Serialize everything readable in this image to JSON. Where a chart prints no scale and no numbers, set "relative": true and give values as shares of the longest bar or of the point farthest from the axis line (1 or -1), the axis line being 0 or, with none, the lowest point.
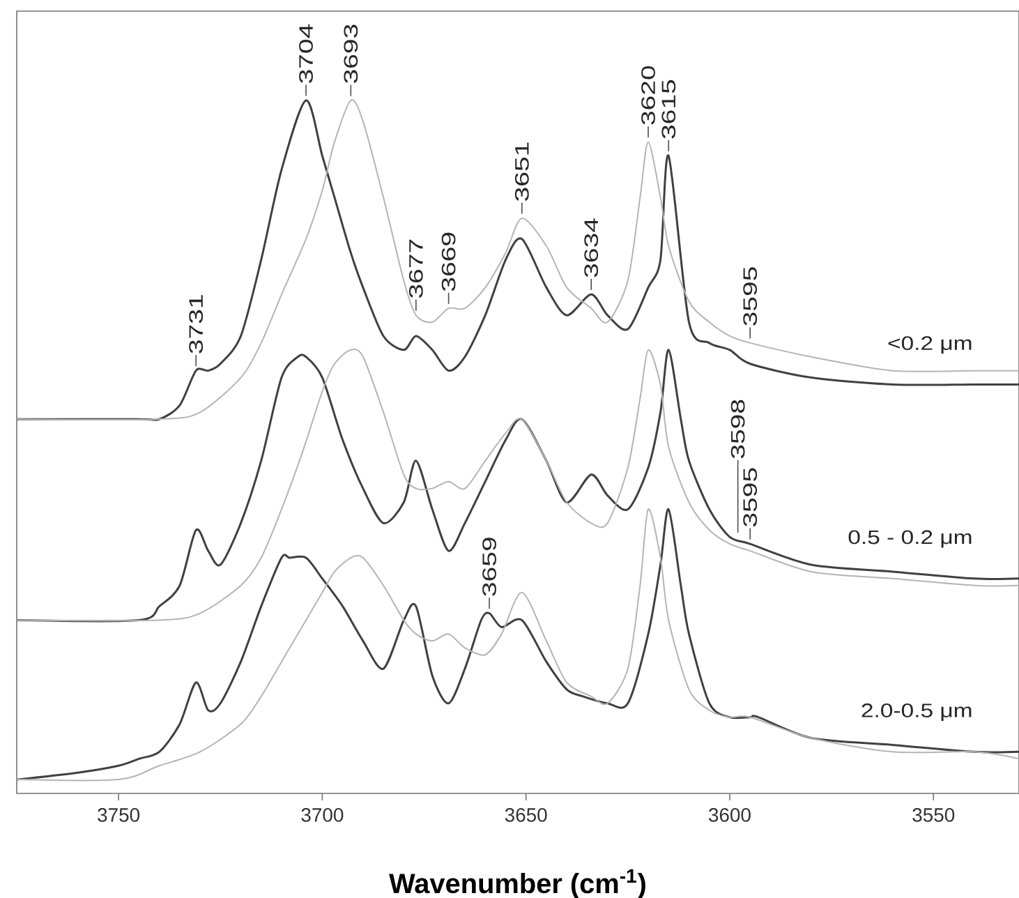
{
  "chart_data": {
    "type": "line",
    "relative": true,
    "xlabel": "Wavenumber (cm$^{-1}$)",
    "xlim": [
      3775,
      3529
    ],
    "xticks": [
      3750,
      3700,
      3650,
      3600,
      3550
    ],
    "series": [
      {
        "name": "<0.2 μm",
        "color": "#404040",
        "x": [
          3775,
          3745,
          3740,
          3735,
          3731,
          3728,
          3725,
          3720,
          3715,
          3710,
          3704,
          3700,
          3697,
          3693,
          3690,
          3685,
          3680,
          3677,
          3673,
          3669,
          3665,
          3660,
          3655,
          3651,
          3645,
          3640,
          3634,
          3630,
          3625,
          3620,
          3617,
          3615,
          3610,
          3605,
          3600,
          3595,
          3580,
          3560,
          3540,
          3529
        ],
        "values": [
          0.54,
          0.54,
          0.54,
          0.56,
          0.61,
          0.61,
          0.62,
          0.66,
          0.77,
          0.9,
          1.0,
          0.92,
          0.86,
          0.78,
          0.73,
          0.66,
          0.64,
          0.66,
          0.64,
          0.61,
          0.63,
          0.69,
          0.77,
          0.8,
          0.73,
          0.69,
          0.72,
          0.69,
          0.67,
          0.73,
          0.77,
          0.92,
          0.68,
          0.65,
          0.64,
          0.62,
          0.6,
          0.59,
          0.59,
          0.59
        ]
      },
      {
        "color": "#b4b4b4",
        "x": [
          3775,
          3740,
          3730,
          3720,
          3715,
          3710,
          3704,
          3700,
          3697,
          3693,
          3690,
          3685,
          3680,
          3677,
          3673,
          3669,
          3665,
          3660,
          3655,
          3651,
          3645,
          3640,
          3634,
          3630,
          3625,
          3622,
          3620,
          3617,
          3615,
          3610,
          3605,
          3600,
          3595,
          3580,
          3560,
          3540,
          3529
        ],
        "values": [
          0.54,
          0.54,
          0.55,
          0.6,
          0.65,
          0.72,
          0.8,
          0.87,
          0.94,
          1.0,
          0.97,
          0.86,
          0.74,
          0.69,
          0.68,
          0.7,
          0.7,
          0.73,
          0.78,
          0.83,
          0.79,
          0.73,
          0.7,
          0.68,
          0.74,
          0.86,
          0.94,
          0.86,
          0.79,
          0.71,
          0.68,
          0.66,
          0.65,
          0.63,
          0.61,
          0.61,
          0.61
        ]
      },
      {
        "name": "0.5 - 0.2 μm",
        "color": "#404040",
        "x": [
          3775,
          3745,
          3740,
          3735,
          3731,
          3728,
          3725,
          3720,
          3715,
          3710,
          3706,
          3704,
          3700,
          3695,
          3690,
          3685,
          3680,
          3677,
          3673,
          3669,
          3665,
          3660,
          3655,
          3651,
          3645,
          3640,
          3634,
          3630,
          3625,
          3620,
          3617,
          3615,
          3612,
          3610,
          3605,
          3600,
          3595,
          3580,
          3560,
          3540,
          3529
        ],
        "values": [
          0.25,
          0.25,
          0.27,
          0.3,
          0.38,
          0.35,
          0.33,
          0.39,
          0.48,
          0.6,
          0.63,
          0.63,
          0.6,
          0.51,
          0.44,
          0.39,
          0.42,
          0.48,
          0.41,
          0.35,
          0.39,
          0.45,
          0.51,
          0.54,
          0.48,
          0.42,
          0.46,
          0.43,
          0.41,
          0.47,
          0.55,
          0.64,
          0.54,
          0.48,
          0.41,
          0.37,
          0.36,
          0.33,
          0.32,
          0.31,
          0.31
        ]
      },
      {
        "color": "#b4b4b4",
        "x": [
          3775,
          3740,
          3730,
          3720,
          3715,
          3710,
          3705,
          3700,
          3697,
          3693,
          3690,
          3685,
          3680,
          3677,
          3673,
          3669,
          3665,
          3660,
          3655,
          3651,
          3645,
          3640,
          3634,
          3630,
          3625,
          3622,
          3620,
          3617,
          3615,
          3610,
          3605,
          3600,
          3595,
          3580,
          3560,
          3540,
          3529
        ],
        "values": [
          0.25,
          0.25,
          0.26,
          0.3,
          0.34,
          0.41,
          0.49,
          0.58,
          0.62,
          0.64,
          0.63,
          0.55,
          0.46,
          0.44,
          0.44,
          0.45,
          0.44,
          0.48,
          0.52,
          0.54,
          0.48,
          0.42,
          0.39,
          0.39,
          0.47,
          0.57,
          0.64,
          0.59,
          0.5,
          0.42,
          0.38,
          0.36,
          0.35,
          0.32,
          0.31,
          0.3,
          0.3
        ]
      },
      {
        "name": "2.0-0.5 μm",
        "color": "#404040",
        "x": [
          3775,
          3760,
          3750,
          3745,
          3740,
          3735,
          3731,
          3728,
          3725,
          3720,
          3715,
          3710,
          3708,
          3704,
          3700,
          3695,
          3690,
          3685,
          3680,
          3677,
          3673,
          3669,
          3665,
          3661,
          3659,
          3656,
          3651,
          3645,
          3640,
          3636,
          3630,
          3625,
          3620,
          3617,
          3615,
          3612,
          3610,
          3605,
          3600,
          3595,
          3593,
          3580,
          3560,
          3540,
          3529
        ],
        "values": [
          0.02,
          0.03,
          0.04,
          0.05,
          0.06,
          0.1,
          0.16,
          0.12,
          0.13,
          0.19,
          0.27,
          0.34,
          0.34,
          0.34,
          0.31,
          0.27,
          0.22,
          0.18,
          0.25,
          0.27,
          0.17,
          0.13,
          0.18,
          0.25,
          0.26,
          0.24,
          0.25,
          0.19,
          0.15,
          0.14,
          0.13,
          0.13,
          0.23,
          0.33,
          0.41,
          0.3,
          0.23,
          0.13,
          0.11,
          0.11,
          0.11,
          0.08,
          0.07,
          0.06,
          0.06
        ]
      },
      {
        "color": "#b4b4b4",
        "x": [
          3775,
          3750,
          3740,
          3730,
          3720,
          3715,
          3710,
          3705,
          3700,
          3697,
          3693,
          3690,
          3685,
          3680,
          3677,
          3673,
          3669,
          3665,
          3660,
          3656,
          3651,
          3645,
          3640,
          3634,
          3630,
          3625,
          3622,
          3620,
          3617,
          3615,
          3610,
          3605,
          3600,
          3595,
          3580,
          3560,
          3540,
          3529
        ],
        "values": [
          0.02,
          0.02,
          0.04,
          0.06,
          0.1,
          0.14,
          0.19,
          0.24,
          0.29,
          0.32,
          0.34,
          0.34,
          0.3,
          0.25,
          0.23,
          0.22,
          0.23,
          0.21,
          0.2,
          0.23,
          0.29,
          0.22,
          0.16,
          0.14,
          0.13,
          0.18,
          0.3,
          0.41,
          0.34,
          0.25,
          0.15,
          0.12,
          0.11,
          0.11,
          0.08,
          0.06,
          0.06,
          0.05
        ]
      }
    ],
    "annotations": [
      {
        "text": "3731",
        "x": 3731,
        "y": 0.61
      },
      {
        "text": "3704",
        "x": 3704,
        "y": 1.0
      },
      {
        "text": "3693",
        "x": 3693,
        "y": 1.0
      },
      {
        "text": "3677",
        "x": 3677,
        "y": 0.69
      },
      {
        "text": "3669",
        "x": 3669,
        "y": 0.7
      },
      {
        "text": "3651",
        "x": 3651,
        "y": 0.83
      },
      {
        "text": "3634",
        "x": 3634,
        "y": 0.72
      },
      {
        "text": "3620",
        "x": 3620,
        "y": 0.94
      },
      {
        "text": "3615",
        "x": 3615,
        "y": 0.92
      },
      {
        "text": "3595",
        "x": 3595,
        "y": 0.65
      },
      {
        "text": "3598",
        "x": 3598,
        "y": 0.37
      },
      {
        "text": "3595",
        "x": 3595,
        "y": 0.36
      },
      {
        "text": "3659",
        "x": 3659,
        "y": 0.26
      }
    ]
  }
}
